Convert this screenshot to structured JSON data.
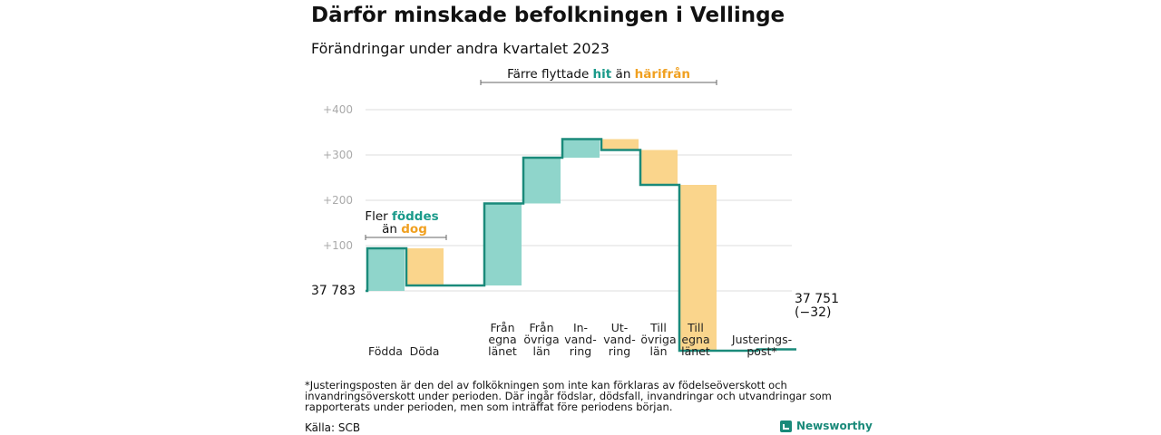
{
  "title": "Därför minskade befolkningen i Vellinge",
  "subtitle": "Förändringar under andra kvartalet 2023",
  "chart_data": {
    "type": "waterfall",
    "start_value": 37783,
    "start_label": "37  783",
    "end_label": "37 751",
    "end_change_label": "(−32)",
    "y_ticks": [
      "+100",
      "+200",
      "+300",
      "+400"
    ],
    "y_tick_values": [
      100,
      200,
      300,
      400
    ],
    "ylim": [
      0,
      470
    ],
    "steps": [
      {
        "label": "Födda",
        "change": 94
      },
      {
        "label": "Döda",
        "change": -82
      },
      {
        "label": "",
        "change": 0
      },
      {
        "label": "Från egna länet",
        "change": 181
      },
      {
        "label": "Från övriga län",
        "change": 101
      },
      {
        "label": "In-vand-ring",
        "change": 41
      },
      {
        "label": "Ut-vand-ring",
        "change": -24
      },
      {
        "label": "Till övriga län",
        "change": -77
      },
      {
        "label": "Till egna länet",
        "change": -366
      },
      {
        "label": "",
        "change": 0
      },
      {
        "label": "Justerings-post*",
        "change": 3
      }
    ],
    "category_labels": [
      [
        "Födda"
      ],
      [
        "Döda"
      ],
      [
        "Från",
        "egna",
        "länet"
      ],
      [
        "Från",
        "övriga",
        "län"
      ],
      [
        "In-",
        "vand-",
        "ring"
      ],
      [
        "Ut-",
        "vand-",
        "ring"
      ],
      [
        "Till",
        "övriga",
        "län"
      ],
      [
        "Till",
        "egna",
        "länet"
      ],
      [
        "Justerings-",
        "post*"
      ]
    ],
    "colors": {
      "increase": "#8fd5cb",
      "decrease": "#fad58c",
      "line": "#1a8a7a",
      "grid": "#dddddd"
    }
  },
  "annotations": {
    "births": {
      "line1_prefix": "Fler ",
      "line1_highlight": "föddes",
      "line2_prefix": "än ",
      "line2_highlight": "dog"
    },
    "migration": {
      "prefix": "Färre flyttade ",
      "highlight1": "hit",
      "middle": " än ",
      "highlight2": "härifrån"
    }
  },
  "footnote": "*Justeringsposten är den del av folkökningen som inte kan förklaras av födelseöverskott och invandringsöverskott under perioden. Där ingår födslar, dödsfall, invandringar och utvandringar som rapporterats under perioden, men som inträffat före periodens början.",
  "source": "Källa: SCB",
  "brand": "Newsworthy"
}
